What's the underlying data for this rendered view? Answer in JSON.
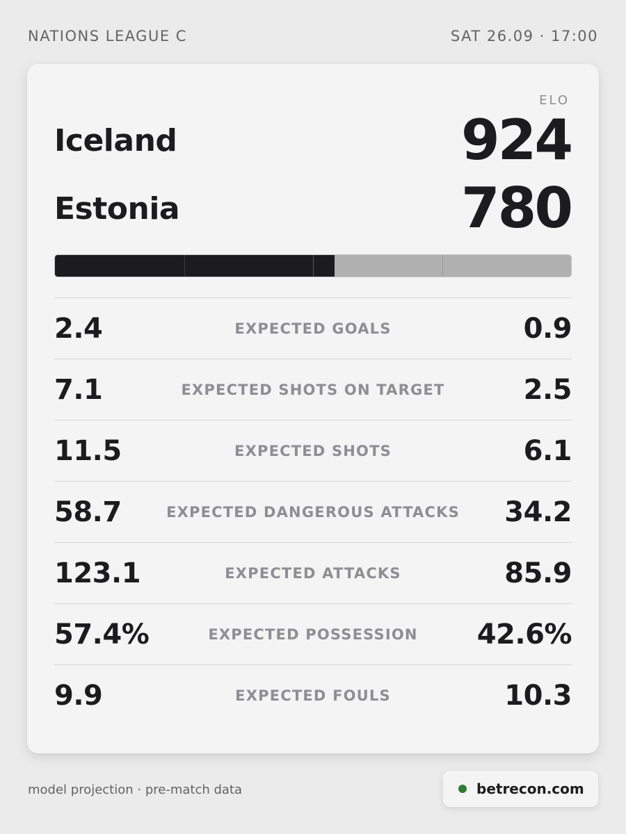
{
  "header": {
    "competition": "NATIONS LEAGUE C",
    "kickoff": "SAT 26.09 · 17:00"
  },
  "elo": {
    "label": "ELO",
    "home": {
      "team": "Iceland",
      "value": "924"
    },
    "away": {
      "team": "Estonia",
      "value": "780"
    },
    "home_share": 0.542,
    "colors": {
      "home": "#1c1c1e",
      "away": "#b0b0b0"
    }
  },
  "stats": [
    {
      "label": "EXPECTED GOALS",
      "home": "2.4",
      "away": "0.9"
    },
    {
      "label": "EXPECTED SHOTS ON TARGET",
      "home": "7.1",
      "away": "2.5"
    },
    {
      "label": "EXPECTED SHOTS",
      "home": "11.5",
      "away": "6.1"
    },
    {
      "label": "EXPECTED DANGEROUS ATTACKS",
      "home": "58.7",
      "away": "34.2"
    },
    {
      "label": "EXPECTED ATTACKS",
      "home": "123.1",
      "away": "85.9"
    },
    {
      "label": "EXPECTED POSSESSION",
      "home": "57.4%",
      "away": "42.6%"
    },
    {
      "label": "EXPECTED FOULS",
      "home": "9.9",
      "away": "10.3"
    }
  ],
  "footer": {
    "note": "model projection · pre-match data",
    "brand": "betrecon.com",
    "brand_dot_color": "#2e7d32"
  }
}
